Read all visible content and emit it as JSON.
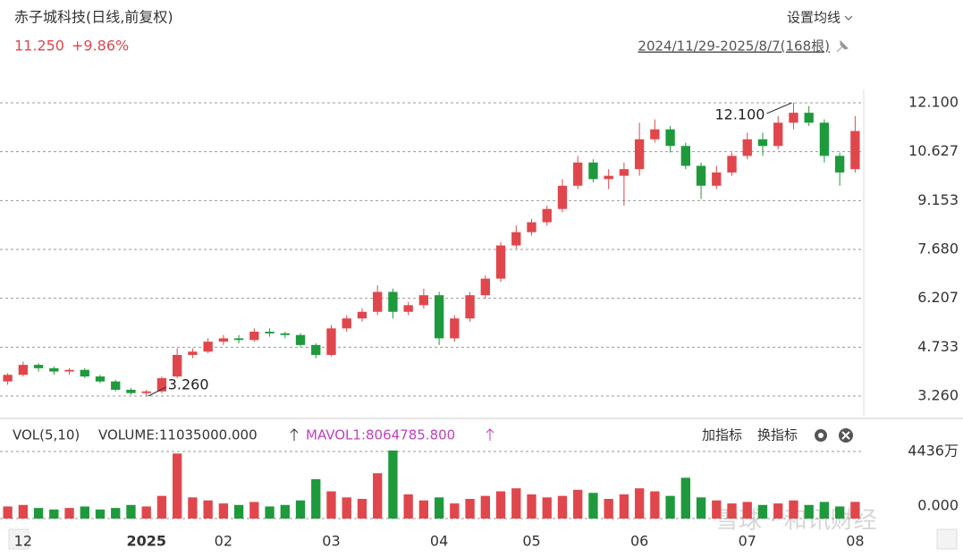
{
  "header": {
    "title": "赤子城科技(日线,前复权)",
    "price": "11.250",
    "change": "+9.86%",
    "ma_setting": "设置均线",
    "range": "2024/11/29-2025/8/7(168根)"
  },
  "chart_data": {
    "type": "candlestick",
    "categories": [
      null,
      "12",
      null,
      null,
      null,
      null,
      null,
      null,
      null,
      "2025",
      null,
      null,
      null,
      null,
      "02",
      null,
      null,
      null,
      null,
      null,
      null,
      "03",
      null,
      null,
      null,
      null,
      null,
      null,
      "04",
      null,
      null,
      null,
      null,
      null,
      "05",
      null,
      null,
      null,
      null,
      null,
      null,
      "06",
      null,
      null,
      null,
      null,
      null,
      null,
      "07",
      null,
      null,
      null,
      null,
      null,
      null,
      "08"
    ],
    "open": [
      3.7,
      3.9,
      4.2,
      4.1,
      4.0,
      4.05,
      3.85,
      3.7,
      3.45,
      3.35,
      3.4,
      3.85,
      4.5,
      4.6,
      4.9,
      5.0,
      4.95,
      5.2,
      5.15,
      5.1,
      4.8,
      4.5,
      5.3,
      5.6,
      5.8,
      6.4,
      5.8,
      6.0,
      6.3,
      5.0,
      5.6,
      6.3,
      6.8,
      7.8,
      8.2,
      8.5,
      8.9,
      9.6,
      10.3,
      9.8,
      9.9,
      10.1,
      11.0,
      11.3,
      10.8,
      10.2,
      9.6,
      10.0,
      10.5,
      11.0,
      10.8,
      11.5,
      11.8,
      11.5,
      10.5,
      10.1
    ],
    "high": [
      3.95,
      4.3,
      4.25,
      4.15,
      4.1,
      4.1,
      3.9,
      3.75,
      3.5,
      3.45,
      3.85,
      4.7,
      4.7,
      5.0,
      5.1,
      5.1,
      5.3,
      5.3,
      5.2,
      5.15,
      4.85,
      5.4,
      5.7,
      5.9,
      6.6,
      6.5,
      6.1,
      6.5,
      6.4,
      5.7,
      6.4,
      6.9,
      7.9,
      8.4,
      8.6,
      9.0,
      9.8,
      10.5,
      10.4,
      10.1,
      10.3,
      11.5,
      11.6,
      11.4,
      10.9,
      10.3,
      10.2,
      10.6,
      11.2,
      11.2,
      11.7,
      12.1,
      12.0,
      11.6,
      10.6,
      11.7
    ],
    "low": [
      3.6,
      3.85,
      4.0,
      3.9,
      3.9,
      3.8,
      3.65,
      3.4,
      3.3,
      3.26,
      3.35,
      3.8,
      4.4,
      4.55,
      4.8,
      4.85,
      4.9,
      5.05,
      5.0,
      4.75,
      4.4,
      4.45,
      5.2,
      5.5,
      5.7,
      5.6,
      5.7,
      5.9,
      4.8,
      4.9,
      5.5,
      6.2,
      6.7,
      7.7,
      8.1,
      8.4,
      8.8,
      9.5,
      9.7,
      9.5,
      9.0,
      9.9,
      10.9,
      10.6,
      10.1,
      9.2,
      9.5,
      9.9,
      10.4,
      10.5,
      10.7,
      11.3,
      11.4,
      10.3,
      9.6,
      10.0
    ],
    "close": [
      3.9,
      4.2,
      4.1,
      4.0,
      4.05,
      3.85,
      3.7,
      3.45,
      3.35,
      3.4,
      3.8,
      4.5,
      4.6,
      4.9,
      5.0,
      4.95,
      5.2,
      5.15,
      5.1,
      4.8,
      4.5,
      5.3,
      5.6,
      5.8,
      6.4,
      5.8,
      6.0,
      6.3,
      5.0,
      5.6,
      6.3,
      6.8,
      7.8,
      8.2,
      8.5,
      8.9,
      9.6,
      10.3,
      9.8,
      9.9,
      10.1,
      11.0,
      11.3,
      10.8,
      10.2,
      9.6,
      10.0,
      10.5,
      11.0,
      10.8,
      11.5,
      11.8,
      11.5,
      10.5,
      10.0,
      11.25
    ],
    "ylim": [
      2.667,
      12.504
    ],
    "yticks": [
      {
        "value": 12.1,
        "label": "12.100"
      },
      {
        "value": 10.627,
        "label": "10.627"
      },
      {
        "value": 9.153,
        "label": "9.153"
      },
      {
        "value": 7.68,
        "label": "7.680"
      },
      {
        "value": 6.207,
        "label": "6.207"
      },
      {
        "value": 4.733,
        "label": "4.733"
      },
      {
        "value": 3.26,
        "label": "3.260"
      }
    ],
    "grid": true,
    "up_color": "#e0474c",
    "down_color": "#1e9a3c",
    "annotations": [
      {
        "text": "12.100"
      },
      {
        "text": "3.260"
      }
    ],
    "volume": {
      "values": [
        8000000,
        9000000,
        7000000,
        6000000,
        7000000,
        8000000,
        6000000,
        7000000,
        9000000,
        8000000,
        15000000,
        43000000,
        14000000,
        12000000,
        10000000,
        9000000,
        11000000,
        8000000,
        9000000,
        12000000,
        26000000,
        18000000,
        14000000,
        13000000,
        30000000,
        45000000,
        16000000,
        12000000,
        14000000,
        10000000,
        13000000,
        15000000,
        18000000,
        20000000,
        16000000,
        14000000,
        15000000,
        19000000,
        17000000,
        13000000,
        16000000,
        20000000,
        18000000,
        15000000,
        27000000,
        14000000,
        12000000,
        10000000,
        11000000,
        9000000,
        10000000,
        12000000,
        9000000,
        11000000,
        8000000,
        11035000
      ],
      "ylim": [
        0,
        47300000
      ],
      "yticks": [
        {
          "value": 44360000,
          "label": "4436万"
        },
        {
          "value": 0,
          "label": "0.000"
        }
      ]
    }
  },
  "volume_header": {
    "name": "VOL(5,10)",
    "volume": "VOLUME:11035000.000",
    "mavol": "MAVOL1:8064785.800"
  },
  "toolbar": {
    "add": "加指标",
    "switch": "换指标"
  },
  "watermark": "雪球 · 和讯财经"
}
